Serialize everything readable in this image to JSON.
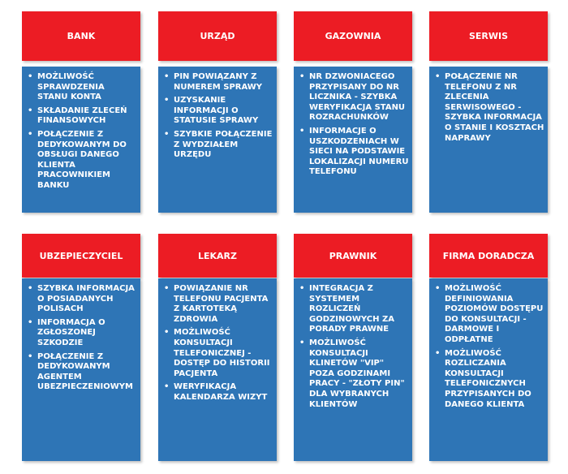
{
  "colors": {
    "header": "#ec1c24",
    "body": "#2e75b6",
    "text": "#ffffff"
  },
  "cards": [
    {
      "title": "BANK",
      "items": [
        "MOŻLIWOŚĆ SPRAWDZENIA STANU KONTA",
        "SKŁADANIE ZLECEŃ FINANSOWYCH",
        "POŁĄCZENIE Z DEDYKOWANYM DO OBSŁUGI DANEGO KLIENTA PRACOWNIKIEM BANKU"
      ]
    },
    {
      "title": "URZĄD",
      "items": [
        "PIN POWIĄZANY Z NUMEREM SPRAWY",
        "UZYSKANIE INFORMACJI O STATUSIE SPRAWY",
        "SZYBKIE POŁĄCZENIE Z WYDZIAŁEM URZĘDU"
      ]
    },
    {
      "title": "GAZOWNIA",
      "items": [
        "NR DZWONIACEGO PRZYPISANY DO NR LICZNIKA - SZYBKA WERYFIKACJA STANU ROZRACHUNKÓW",
        "INFORMACJE O USZKODZENIACH W SIECI NA PODSTAWIE LOKALIZACJI NUMERU TELEFONU"
      ]
    },
    {
      "title": "SERWIS",
      "items": [
        "POŁĄCZENIE NR TELEFONU Z NR ZLECENIA SERWISOWEGO - SZYBKA INFORMACJA O STANIE I KOSZTACH NAPRAWY"
      ]
    },
    {
      "title": "UBZEPIECZYCIEL",
      "items": [
        "SZYBKA INFORMACJA O POSIADANYCH POLISACH",
        "INFORMACJA O ZGŁOSZONEJ SZKODZIE",
        "POŁĄCZENIE Z DEDYKOWANYM AGENTEM UBEZPIECZENIOWYM"
      ]
    },
    {
      "title": "LEKARZ",
      "items": [
        "POWIĄZANIE NR TELEFONU PACJENTA Z KARTOTEKĄ ZDROWIA",
        "MOŻLIWOŚĆ KONSULTACJI TELEFONICZNEJ - DOSTĘP DO HISTORII PACJENTA",
        "WERYFIKACJA KALENDARZA WIZYT"
      ]
    },
    {
      "title": "PRAWNIK",
      "items": [
        "INTEGRACJA Z SYSTEMEM ROZLICZEŃ GODZINOWYCH ZA PORADY PRAWNE",
        "MOŻLIWOŚĆ KONSULTACJI KLINETÓW \"VIP\" POZA GODZINAMI PRACY - \"ZŁOTY PIN\" DLA WYBRANYCH KLIENTÓW"
      ]
    },
    {
      "title": "FIRMA DORADCZA",
      "items": [
        "MOŻLIWOŚĆ DEFINIOWANIA POZIOMÓW DOSTĘPU DO KONSULTACJI - DARMOWE I ODPŁATNE",
        "MOŻLIWOŚĆ ROZLICZANIA KONSULTACJI TELEFONICZNYCH PRZYPISANYCH DO DANEGO KLIENTA"
      ]
    }
  ]
}
